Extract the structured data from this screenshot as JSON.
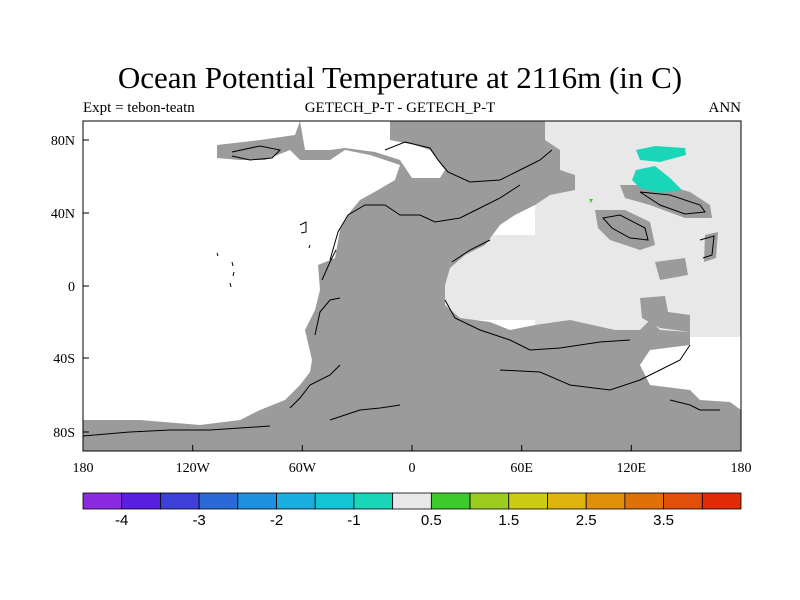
{
  "title": "Ocean Potential Temperature at 2116m (in C)",
  "subtitle_left": "Expt = tebon-teatn",
  "subtitle_center": "GETECH_P-T - GETECH_P-T",
  "subtitle_right": "ANN",
  "lat_labels": [
    "80N",
    "40N",
    "0",
    "40S",
    "80S"
  ],
  "lon_labels": [
    "180",
    "120W",
    "60W",
    "0",
    "60E",
    "120E",
    "180"
  ],
  "colorbar": {
    "colors": [
      "#8a2be2",
      "#5a1fe0",
      "#3c3fd8",
      "#2a6ad8",
      "#1e90e0",
      "#1aaee0",
      "#12c4d4",
      "#1ad6b8",
      "#e8e8e8",
      "#3ccc2a",
      "#9ccc1e",
      "#cccc14",
      "#e0b40e",
      "#e09008",
      "#e07008",
      "#e05008",
      "#e02a08"
    ],
    "labels": [
      "-4",
      "-3",
      "-2",
      "-1",
      "0.5",
      "1.5",
      "2.5",
      "3.5"
    ]
  },
  "map_colors": {
    "land": "#9b9b9b",
    "neutral_ocean": "#e8e8e8",
    "missing": "#ffffff",
    "cold_patch": "#1ad6b8",
    "warm_dot": "#3ccc2a"
  }
}
